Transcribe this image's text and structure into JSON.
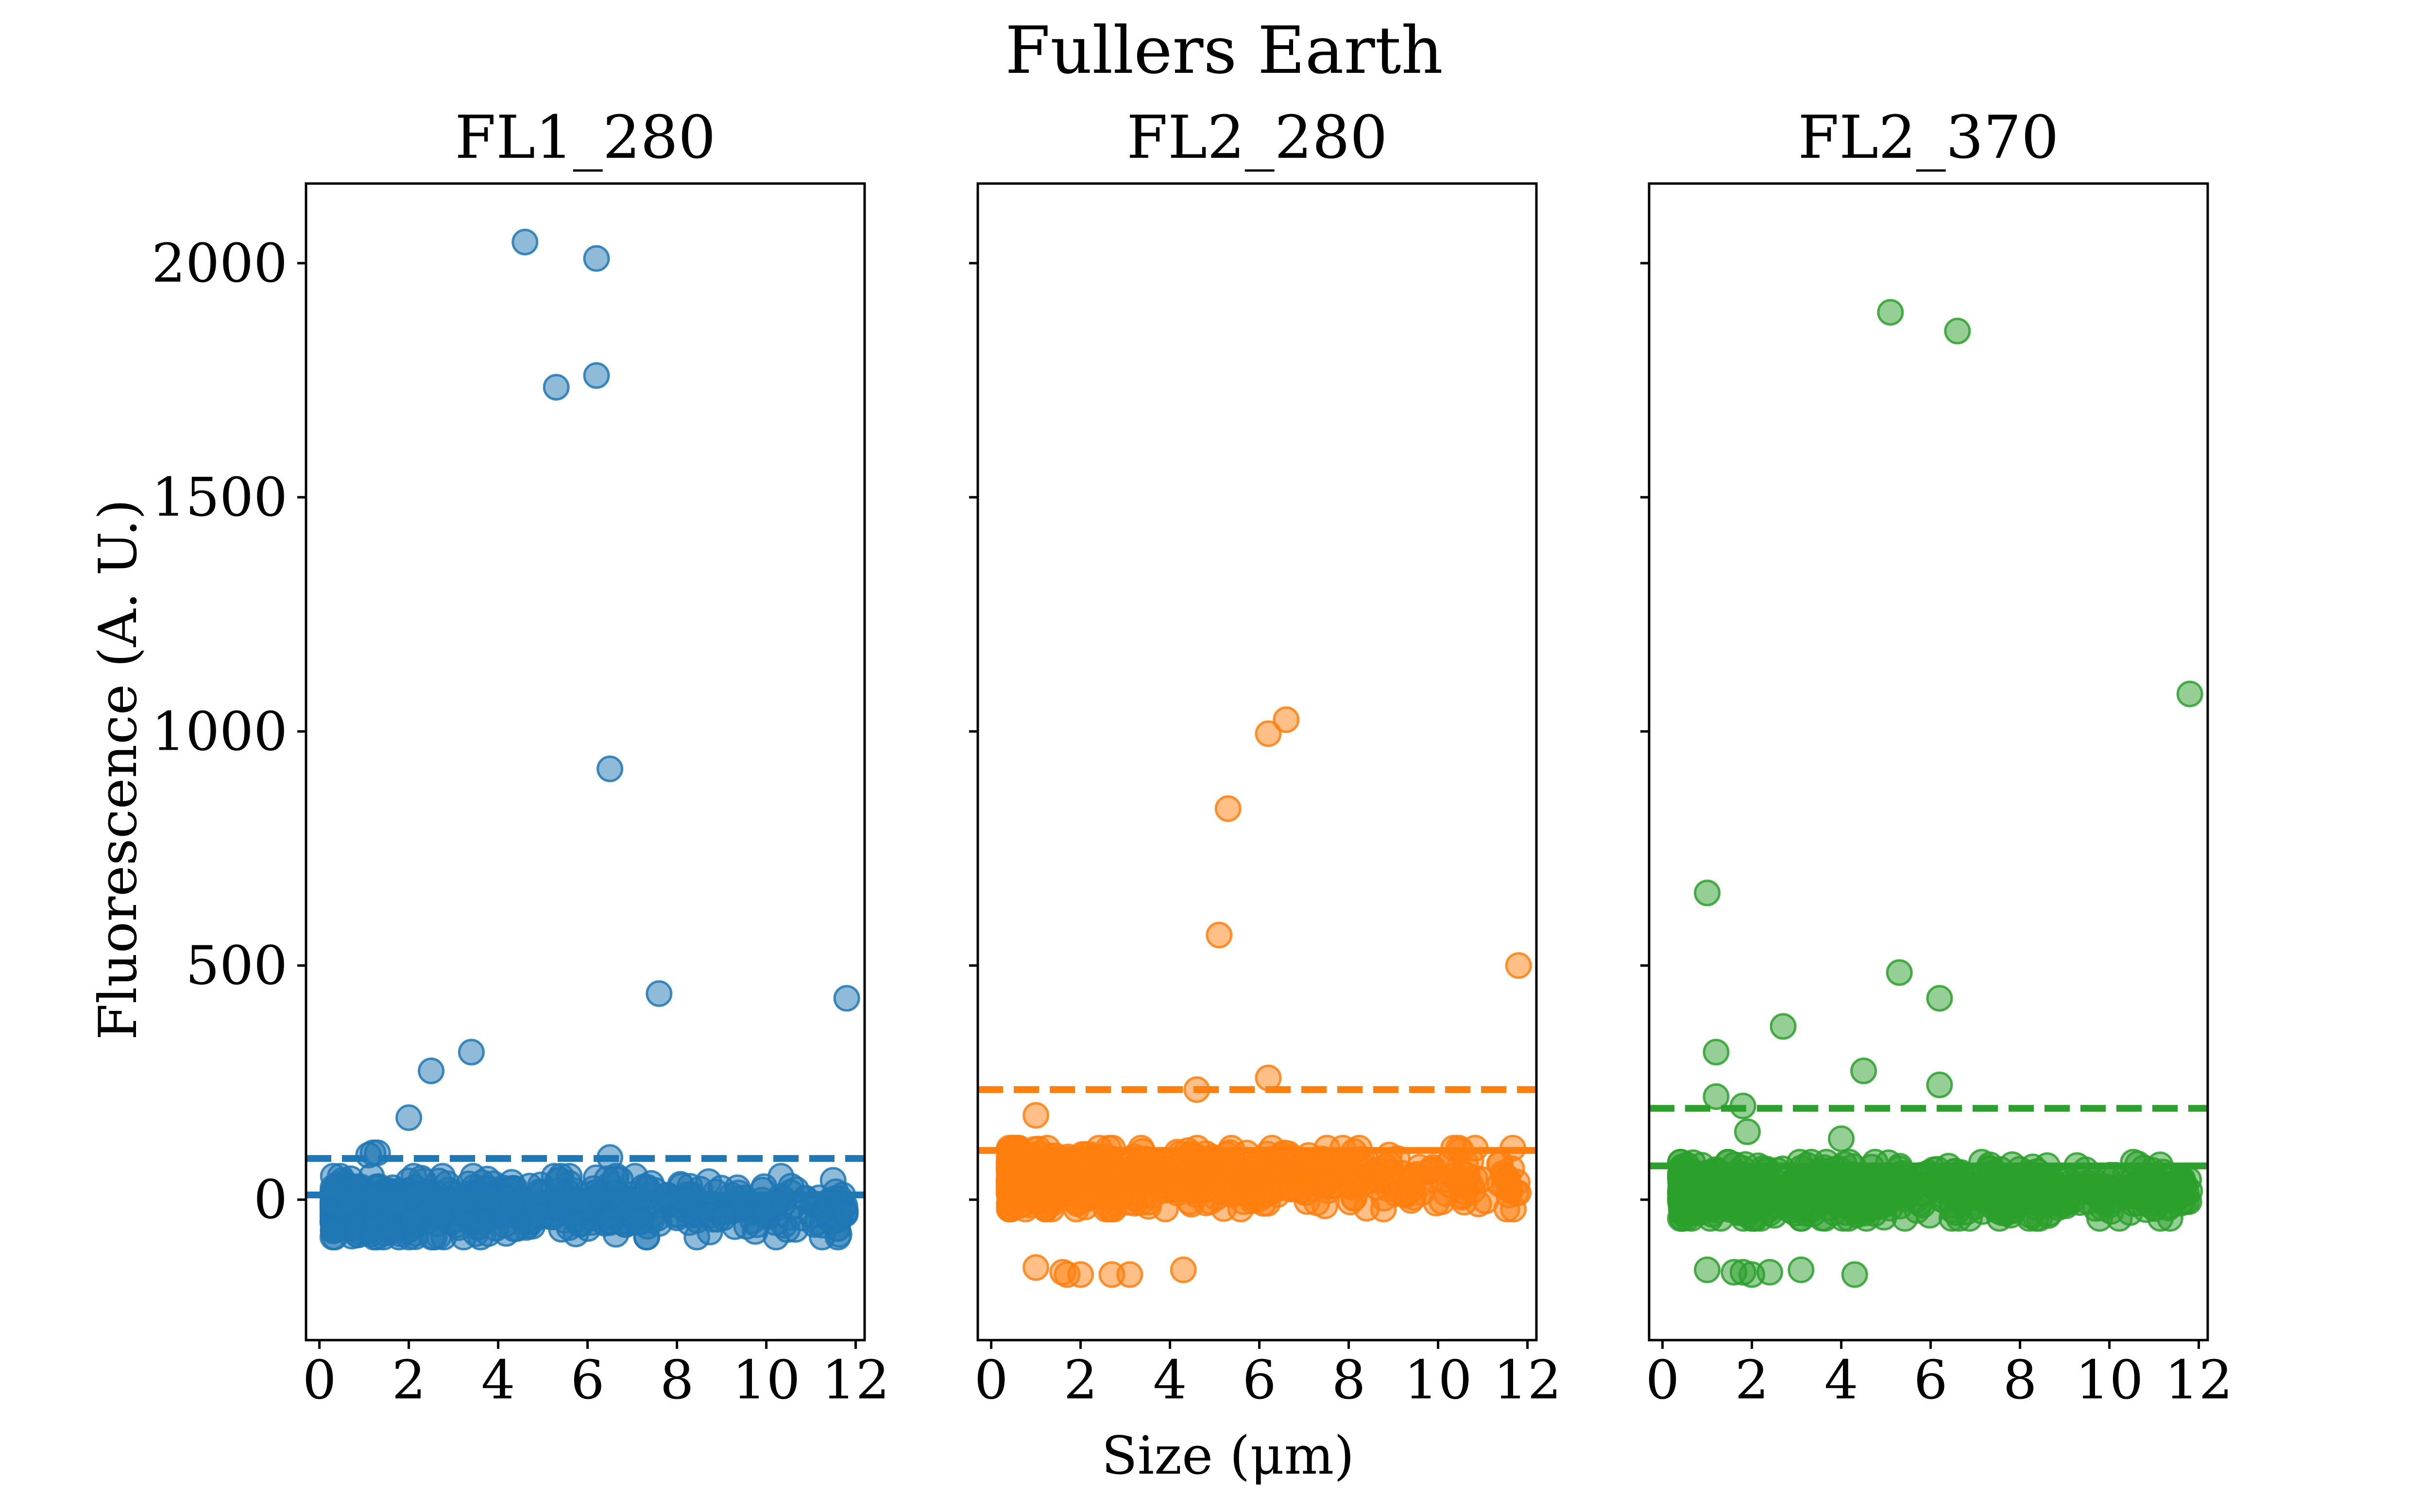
{
  "figure_title": "Fullers Earth",
  "shared_xlabel": "Size (μm)",
  "shared_ylabel": "Fluorescence (A. U.)",
  "colors": {
    "FL1_280": "#1f77b4",
    "FL2_280": "#ff7f0e",
    "FL2_370": "#2ca02c"
  },
  "chart_data": [
    {
      "type": "scatter",
      "title": "FL1_280",
      "xlabel": "Size (μm)",
      "ylabel": "Fluorescence (A. U.)",
      "xlim": [
        -0.3,
        12.2
      ],
      "ylim": [
        -300,
        2170
      ],
      "xticks": [
        0,
        2,
        4,
        6,
        8,
        10,
        12
      ],
      "xtick_labels": [
        "0",
        "2",
        "4",
        "6",
        "8",
        "10",
        "12"
      ],
      "yticks": [
        0,
        500,
        1000,
        1500,
        2000
      ],
      "ytick_labels": [
        "0",
        "500",
        "1000",
        "1500",
        "2000"
      ],
      "mean_line": 10,
      "threshold_line": 88,
      "outliers": [
        [
          4.6,
          2045
        ],
        [
          6.2,
          2010
        ],
        [
          5.3,
          1735
        ],
        [
          6.2,
          1760
        ],
        [
          6.5,
          920
        ],
        [
          7.6,
          440
        ],
        [
          11.8,
          430
        ],
        [
          3.4,
          315
        ],
        [
          2.5,
          275
        ],
        [
          2.0,
          175
        ],
        [
          1.2,
          100
        ],
        [
          1.3,
          100
        ],
        [
          6.5,
          90
        ],
        [
          1.1,
          95
        ]
      ],
      "cluster": {
        "x_range": [
          0.3,
          11.8
        ],
        "y_range": [
          -80,
          50
        ],
        "approx_points": 700
      },
      "series": [
        {
          "name": "FL1_280",
          "color": "#1f77b4"
        }
      ]
    },
    {
      "type": "scatter",
      "title": "FL2_280",
      "xlabel": "Size (μm)",
      "ylabel": "Fluorescence (A. U.)",
      "xlim": [
        -0.3,
        12.2
      ],
      "ylim": [
        -300,
        2170
      ],
      "xticks": [
        0,
        2,
        4,
        6,
        8,
        10,
        12
      ],
      "xtick_labels": [
        "0",
        "2",
        "4",
        "6",
        "8",
        "10",
        "12"
      ],
      "yticks": [
        0,
        500,
        1000,
        1500,
        2000
      ],
      "ytick_labels": [],
      "mean_line": 105,
      "threshold_line": 235,
      "outliers": [
        [
          6.6,
          1025
        ],
        [
          6.2,
          995
        ],
        [
          5.3,
          835
        ],
        [
          5.1,
          565
        ],
        [
          11.8,
          500
        ],
        [
          6.2,
          260
        ],
        [
          4.6,
          235
        ],
        [
          1.0,
          180
        ],
        [
          1.0,
          -145
        ],
        [
          1.6,
          -155
        ],
        [
          1.7,
          -160
        ],
        [
          2.0,
          -160
        ],
        [
          2.7,
          -160
        ],
        [
          3.1,
          -160
        ],
        [
          4.3,
          -150
        ]
      ],
      "cluster": {
        "x_range": [
          0.4,
          11.8
        ],
        "y_range": [
          -20,
          110
        ],
        "approx_points": 700
      },
      "series": [
        {
          "name": "FL2_280",
          "color": "#ff7f0e"
        }
      ]
    },
    {
      "type": "scatter",
      "title": "FL2_370",
      "xlabel": "Size (μm)",
      "ylabel": "Fluorescence (A. U.)",
      "xlim": [
        -0.3,
        12.2
      ],
      "ylim": [
        -300,
        2170
      ],
      "xticks": [
        0,
        2,
        4,
        6,
        8,
        10,
        12
      ],
      "xtick_labels": [
        "0",
        "2",
        "4",
        "6",
        "8",
        "10",
        "12"
      ],
      "yticks": [
        0,
        500,
        1000,
        1500,
        2000
      ],
      "ytick_labels": [],
      "mean_line": 72,
      "threshold_line": 195,
      "outliers": [
        [
          5.1,
          1895
        ],
        [
          6.6,
          1855
        ],
        [
          11.8,
          1080
        ],
        [
          1.0,
          655
        ],
        [
          5.3,
          485
        ],
        [
          6.2,
          430
        ],
        [
          2.7,
          370
        ],
        [
          1.2,
          315
        ],
        [
          4.5,
          275
        ],
        [
          6.2,
          245
        ],
        [
          1.2,
          220
        ],
        [
          1.8,
          200
        ],
        [
          1.9,
          145
        ],
        [
          4.0,
          130
        ],
        [
          1.0,
          -150
        ],
        [
          1.6,
          -155
        ],
        [
          1.8,
          -155
        ],
        [
          2.0,
          -160
        ],
        [
          2.4,
          -155
        ],
        [
          3.1,
          -150
        ],
        [
          4.3,
          -160
        ]
      ],
      "cluster": {
        "x_range": [
          0.4,
          11.8
        ],
        "y_range": [
          -40,
          80
        ],
        "approx_points": 700
      },
      "series": [
        {
          "name": "FL2_370",
          "color": "#2ca02c"
        }
      ]
    }
  ]
}
